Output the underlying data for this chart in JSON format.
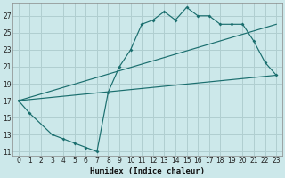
{
  "xlabel": "Humidex (Indice chaleur)",
  "bg_color": "#cce8ea",
  "grid_color": "#b0ced0",
  "line_color": "#1a6e6e",
  "xlim": [
    -0.5,
    23.5
  ],
  "ylim": [
    10.5,
    28.5
  ],
  "xticks": [
    0,
    1,
    2,
    3,
    4,
    5,
    6,
    7,
    8,
    9,
    10,
    11,
    12,
    13,
    14,
    15,
    16,
    17,
    18,
    19,
    20,
    21,
    22,
    23
  ],
  "yticks": [
    11,
    13,
    15,
    17,
    19,
    21,
    23,
    25,
    27
  ],
  "curve1_x": [
    0,
    1,
    3,
    4,
    5,
    6,
    7,
    8,
    9,
    10,
    11,
    12,
    13,
    14,
    15,
    16,
    17,
    18,
    19,
    20,
    21,
    22,
    23
  ],
  "curve1_y": [
    17,
    15.5,
    13,
    12.5,
    12,
    11.5,
    11,
    18,
    21,
    23,
    26,
    26.5,
    27.5,
    26.5,
    28,
    27,
    27,
    26,
    26,
    26,
    24,
    21.5,
    20
  ],
  "line1_x": [
    0,
    23
  ],
  "line1_y": [
    17,
    20
  ],
  "line2_x": [
    0,
    23
  ],
  "line2_y": [
    17,
    26
  ]
}
